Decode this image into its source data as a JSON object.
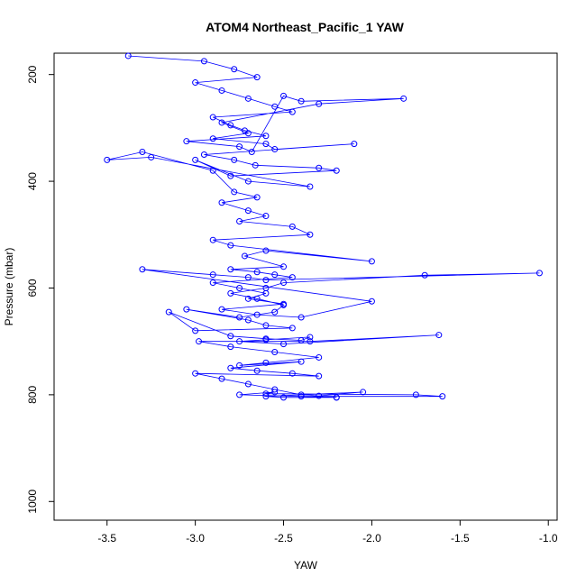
{
  "chart_data": {
    "type": "scatter",
    "title": "ATOM4 Northeast_Pacific_1 YAW",
    "xlabel": "YAW",
    "ylabel": "Pressure (mbar)",
    "xlim": [
      -3.8,
      -0.95
    ],
    "ylim": [
      1035,
      160
    ],
    "y_reversed": true,
    "xticks": [
      -3.5,
      -3.0,
      -2.5,
      -2.0,
      -1.5,
      -1.0
    ],
    "xtick_labels": [
      "-3.5",
      "-3.0",
      "-2.5",
      "-2.0",
      "-1.5",
      "-1.0"
    ],
    "yticks": [
      200,
      400,
      600,
      800,
      1000
    ],
    "ytick_labels": [
      "200",
      "400",
      "600",
      "800",
      "1000"
    ],
    "series_color": "#0000ff",
    "marker": "open-circle",
    "connected": true,
    "grid": false,
    "series": [
      {
        "x": [
          -3.38,
          -2.95,
          -2.78,
          -2.65,
          -3.0,
          -2.85,
          -2.7,
          -2.55,
          -2.45,
          -2.9,
          -2.8,
          -2.72,
          -2.6,
          -3.05,
          -2.75,
          -2.68,
          -2.5,
          -2.4,
          -1.82,
          -2.3,
          -2.85,
          -2.7,
          -2.9,
          -2.6,
          -2.55,
          -2.1,
          -2.95,
          -2.78,
          -2.66,
          -2.3,
          -2.2,
          -2.8,
          -3.0,
          -2.7,
          -2.35,
          -3.25,
          -3.5,
          -3.3,
          -2.9,
          -2.78,
          -2.65,
          -2.85,
          -2.7,
          -2.6,
          -2.75,
          -2.45,
          -2.35,
          -2.9,
          -2.8,
          -2.0,
          -2.6,
          -2.72,
          -2.5,
          -2.8,
          -2.65,
          -2.55,
          -2.45,
          -2.9,
          -2.75,
          -2.6,
          -2.7,
          -2.5,
          -2.85,
          -2.65,
          -2.4,
          -2.0,
          -3.3,
          -2.9,
          -2.7,
          -2.6,
          -1.05,
          -1.7,
          -2.5,
          -2.6,
          -2.8,
          -2.65,
          -2.5,
          -2.55,
          -2.75,
          -3.05,
          -2.7,
          -2.6,
          -2.45,
          -3.0,
          -3.15,
          -2.8,
          -2.6,
          -2.4,
          -2.35,
          -2.6,
          -2.75,
          -2.5,
          -1.62,
          -2.35,
          -2.98,
          -2.8,
          -2.55,
          -2.3,
          -2.6,
          -2.75,
          -2.4,
          -2.8,
          -2.65,
          -2.45,
          -2.3,
          -3.0,
          -2.85,
          -2.7,
          -2.55,
          -2.4,
          -2.3,
          -2.05,
          -2.6,
          -2.5,
          -2.2,
          -2.2,
          -2.75,
          -2.55,
          -2.6,
          -1.75,
          -1.6,
          -2.4
        ],
        "y": [
          165,
          175,
          190,
          205,
          215,
          230,
          245,
          260,
          270,
          280,
          295,
          305,
          315,
          325,
          335,
          345,
          240,
          250,
          245,
          255,
          290,
          310,
          320,
          330,
          340,
          330,
          350,
          360,
          370,
          375,
          380,
          390,
          360,
          400,
          410,
          355,
          360,
          345,
          380,
          420,
          430,
          440,
          455,
          465,
          475,
          485,
          500,
          510,
          520,
          550,
          530,
          540,
          560,
          565,
          570,
          575,
          580,
          590,
          600,
          610,
          620,
          630,
          640,
          650,
          655,
          625,
          565,
          575,
          580,
          585,
          572,
          576,
          590,
          600,
          610,
          620,
          632,
          645,
          655,
          640,
          660,
          670,
          675,
          680,
          645,
          690,
          695,
          698,
          692,
          697,
          700,
          705,
          688,
          700,
          700,
          710,
          720,
          730,
          740,
          745,
          738,
          750,
          755,
          760,
          765,
          760,
          770,
          780,
          790,
          800,
          802,
          795,
          803,
          805,
          805,
          805,
          800,
          795,
          798,
          800,
          803,
          803
        ]
      }
    ]
  }
}
